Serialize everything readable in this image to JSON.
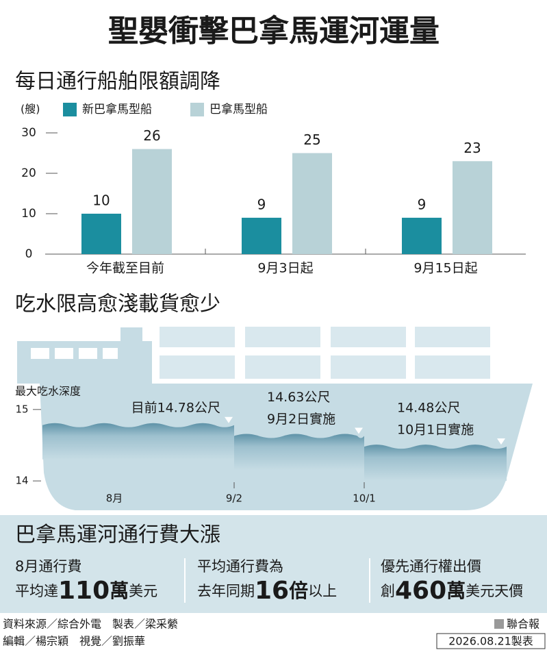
{
  "title": "聖嬰衝擊巴拿馬運河運量",
  "chart_data": [
    {
      "type": "bar",
      "title": "每日通行船舶限額調降",
      "y_label": "(艘)",
      "categories": [
        "今年截至目前",
        "9月3日起",
        "9月15日起"
      ],
      "series": [
        {
          "name": "新巴拿馬型船",
          "color": "#1b8e9f",
          "values": [
            10,
            9,
            9
          ]
        },
        {
          "name": "巴拿馬型船",
          "color": "#b8d2d7",
          "values": [
            26,
            25,
            23
          ]
        }
      ],
      "ylim": [
        0,
        30
      ],
      "yticks": [
        0,
        10,
        20,
        30
      ]
    },
    {
      "type": "step",
      "title": "吃水限高愈淺載貨愈少",
      "y_label": "最大吃水深度",
      "categories": [
        "8月",
        "9/2",
        "10/1"
      ],
      "values": [
        14.78,
        14.63,
        14.48
      ],
      "value_labels": [
        "目前14.78公尺",
        "14.63公尺",
        "14.48公尺"
      ],
      "annotations": [
        null,
        "9月2日實施",
        "10月1日實施"
      ],
      "color": "#6fa3b8",
      "ylim": [
        13.8,
        15.2
      ],
      "yticks": [
        14,
        15
      ]
    }
  ],
  "fees": {
    "title": "巴拿馬運河通行費大漲",
    "items": [
      {
        "heading": "8月通行費",
        "prefix": "平均達",
        "figure": "110",
        "unit": "萬",
        "suffix": "美元"
      },
      {
        "heading": "平均通行費為",
        "prefix": "去年同期",
        "figure": "16",
        "unit": "倍",
        "suffix": "以上"
      },
      {
        "heading": "優先通行權出價",
        "prefix": "創",
        "figure": "460",
        "unit": "萬",
        "suffix": "美元天價"
      }
    ]
  },
  "footer": {
    "credits": [
      "資料來源／綜合外電　製表／梁采縈",
      "編輯／楊宗穎　視覺／劉振華"
    ],
    "publisher": "聯合報",
    "date": "2026.08.21製表"
  }
}
